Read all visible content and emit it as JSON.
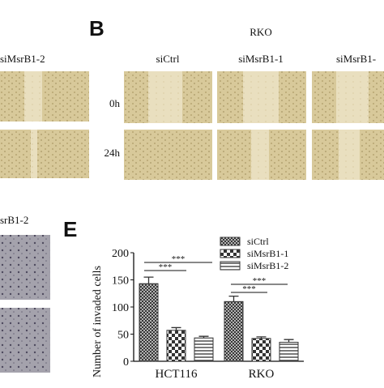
{
  "figure": {
    "left_top_label": "siMsrB1-2",
    "panel_b": {
      "letter": "B",
      "cell_line": "RKO",
      "columns": [
        "siCtrl",
        "siMsrB1-1",
        "siMsrB1-"
      ],
      "rows": [
        "0h",
        "24h"
      ]
    },
    "left_bottom_label": "srB1-2",
    "panel_e": {
      "letter": "E"
    }
  },
  "chart_data": {
    "type": "bar",
    "y_label": "Number of invaded cells",
    "categories": [
      "HCT116",
      "RKO"
    ],
    "series": [
      {
        "name": "siCtrl",
        "color": "#333333",
        "pattern": "crosshatch",
        "values": [
          143,
          110
        ],
        "errors": [
          12,
          10
        ]
      },
      {
        "name": "siMsrB1-1",
        "color": "#333333",
        "pattern": "checker",
        "values": [
          57,
          42
        ],
        "errors": [
          5,
          3
        ]
      },
      {
        "name": "siMsrB1-2",
        "color": "#333333",
        "pattern": "stripes",
        "values": [
          43,
          35
        ],
        "errors": [
          3,
          5
        ]
      }
    ],
    "ylim": [
      0,
      200
    ],
    "yticks": [
      0,
      50,
      100,
      150,
      200
    ],
    "annotations": [
      "***",
      "***",
      "***",
      "***"
    ]
  }
}
